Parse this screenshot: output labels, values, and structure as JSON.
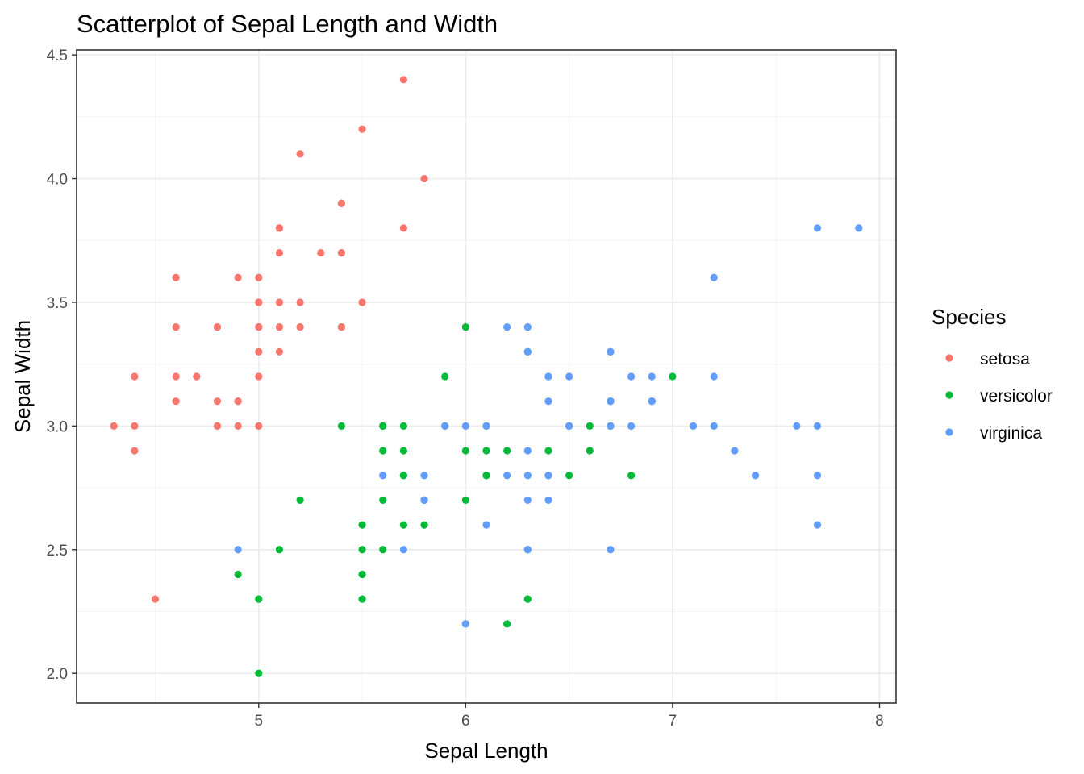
{
  "chart_data": {
    "type": "scatter",
    "title": "Scatterplot of Sepal Length and Width",
    "xlabel": "Sepal Length",
    "ylabel": "Sepal Width",
    "xlim": [
      4.3,
      7.9
    ],
    "ylim": [
      2.0,
      4.4
    ],
    "x_ticks": [
      5,
      6,
      7,
      8
    ],
    "x_tick_labels": [
      "5",
      "6",
      "7",
      "8"
    ],
    "y_ticks": [
      2.0,
      2.5,
      3.0,
      3.5,
      4.0,
      4.5
    ],
    "y_tick_labels": [
      "2.0",
      "2.5",
      "3.0",
      "3.5",
      "4.0",
      "4.5"
    ],
    "grid": true,
    "legend": {
      "title": "Species",
      "position": "right"
    },
    "series": [
      {
        "name": "setosa",
        "color": "#F8766D",
        "points": [
          [
            5.1,
            3.5
          ],
          [
            4.9,
            3.0
          ],
          [
            4.7,
            3.2
          ],
          [
            4.6,
            3.1
          ],
          [
            5.0,
            3.6
          ],
          [
            5.4,
            3.9
          ],
          [
            4.6,
            3.4
          ],
          [
            5.0,
            3.4
          ],
          [
            4.4,
            2.9
          ],
          [
            4.9,
            3.1
          ],
          [
            5.4,
            3.7
          ],
          [
            4.8,
            3.4
          ],
          [
            4.8,
            3.0
          ],
          [
            4.3,
            3.0
          ],
          [
            5.8,
            4.0
          ],
          [
            5.7,
            4.4
          ],
          [
            5.4,
            3.9
          ],
          [
            5.1,
            3.5
          ],
          [
            5.7,
            3.8
          ],
          [
            5.1,
            3.8
          ],
          [
            5.4,
            3.4
          ],
          [
            5.1,
            3.7
          ],
          [
            4.6,
            3.6
          ],
          [
            5.1,
            3.3
          ],
          [
            4.8,
            3.4
          ],
          [
            5.0,
            3.0
          ],
          [
            5.0,
            3.4
          ],
          [
            5.2,
            3.5
          ],
          [
            5.2,
            3.4
          ],
          [
            4.7,
            3.2
          ],
          [
            4.8,
            3.1
          ],
          [
            5.4,
            3.4
          ],
          [
            5.2,
            4.1
          ],
          [
            5.5,
            4.2
          ],
          [
            4.9,
            3.1
          ],
          [
            5.0,
            3.2
          ],
          [
            5.5,
            3.5
          ],
          [
            4.9,
            3.6
          ],
          [
            4.4,
            3.0
          ],
          [
            5.1,
            3.4
          ],
          [
            5.0,
            3.5
          ],
          [
            4.5,
            2.3
          ],
          [
            4.4,
            3.2
          ],
          [
            5.0,
            3.5
          ],
          [
            5.1,
            3.8
          ],
          [
            4.8,
            3.0
          ],
          [
            5.1,
            3.8
          ],
          [
            4.6,
            3.2
          ],
          [
            5.3,
            3.7
          ],
          [
            5.0,
            3.3
          ]
        ]
      },
      {
        "name": "versicolor",
        "color": "#00BA38",
        "points": [
          [
            7.0,
            3.2
          ],
          [
            6.4,
            3.2
          ],
          [
            6.9,
            3.1
          ],
          [
            5.5,
            2.3
          ],
          [
            6.5,
            2.8
          ],
          [
            5.7,
            2.8
          ],
          [
            6.3,
            3.3
          ],
          [
            4.9,
            2.4
          ],
          [
            6.6,
            2.9
          ],
          [
            5.2,
            2.7
          ],
          [
            5.0,
            2.0
          ],
          [
            5.9,
            3.0
          ],
          [
            6.0,
            2.2
          ],
          [
            6.1,
            2.9
          ],
          [
            5.6,
            2.9
          ],
          [
            6.7,
            3.1
          ],
          [
            5.6,
            3.0
          ],
          [
            5.8,
            2.7
          ],
          [
            6.2,
            2.2
          ],
          [
            5.6,
            2.5
          ],
          [
            5.9,
            3.2
          ],
          [
            6.1,
            2.8
          ],
          [
            6.3,
            2.5
          ],
          [
            6.1,
            2.8
          ],
          [
            6.4,
            2.9
          ],
          [
            6.6,
            3.0
          ],
          [
            6.8,
            2.8
          ],
          [
            6.7,
            3.0
          ],
          [
            6.0,
            2.9
          ],
          [
            5.7,
            2.6
          ],
          [
            5.5,
            2.4
          ],
          [
            5.5,
            2.4
          ],
          [
            5.8,
            2.7
          ],
          [
            6.0,
            2.7
          ],
          [
            5.4,
            3.0
          ],
          [
            6.0,
            3.4
          ],
          [
            6.7,
            3.1
          ],
          [
            6.3,
            2.3
          ],
          [
            5.6,
            3.0
          ],
          [
            5.5,
            2.5
          ],
          [
            5.5,
            2.6
          ],
          [
            6.1,
            3.0
          ],
          [
            5.8,
            2.6
          ],
          [
            5.0,
            2.3
          ],
          [
            5.6,
            2.7
          ],
          [
            5.7,
            3.0
          ],
          [
            5.7,
            2.9
          ],
          [
            6.2,
            2.9
          ],
          [
            5.1,
            2.5
          ],
          [
            5.7,
            2.8
          ]
        ]
      },
      {
        "name": "virginica",
        "color": "#619CFF",
        "points": [
          [
            6.3,
            3.3
          ],
          [
            5.8,
            2.7
          ],
          [
            7.1,
            3.0
          ],
          [
            6.3,
            2.9
          ],
          [
            6.5,
            3.0
          ],
          [
            7.6,
            3.0
          ],
          [
            4.9,
            2.5
          ],
          [
            7.3,
            2.9
          ],
          [
            6.7,
            2.5
          ],
          [
            7.2,
            3.6
          ],
          [
            6.5,
            3.2
          ],
          [
            6.4,
            2.7
          ],
          [
            6.8,
            3.0
          ],
          [
            5.7,
            2.5
          ],
          [
            5.8,
            2.8
          ],
          [
            6.4,
            3.2
          ],
          [
            6.5,
            3.0
          ],
          [
            7.7,
            3.8
          ],
          [
            7.7,
            2.6
          ],
          [
            6.0,
            2.2
          ],
          [
            6.9,
            3.2
          ],
          [
            5.6,
            2.8
          ],
          [
            7.7,
            2.8
          ],
          [
            6.3,
            2.7
          ],
          [
            6.7,
            3.3
          ],
          [
            7.2,
            3.2
          ],
          [
            6.2,
            2.8
          ],
          [
            6.1,
            3.0
          ],
          [
            6.4,
            2.8
          ],
          [
            7.2,
            3.0
          ],
          [
            7.4,
            2.8
          ],
          [
            7.9,
            3.8
          ],
          [
            6.4,
            2.8
          ],
          [
            6.3,
            2.8
          ],
          [
            6.1,
            2.6
          ],
          [
            7.7,
            3.0
          ],
          [
            6.3,
            3.4
          ],
          [
            6.4,
            3.1
          ],
          [
            6.0,
            3.0
          ],
          [
            6.9,
            3.1
          ],
          [
            6.7,
            3.1
          ],
          [
            6.9,
            3.1
          ],
          [
            5.8,
            2.7
          ],
          [
            6.8,
            3.2
          ],
          [
            6.7,
            3.3
          ],
          [
            6.7,
            3.0
          ],
          [
            6.3,
            2.5
          ],
          [
            6.5,
            3.0
          ],
          [
            6.2,
            3.4
          ],
          [
            5.9,
            3.0
          ]
        ]
      }
    ]
  }
}
